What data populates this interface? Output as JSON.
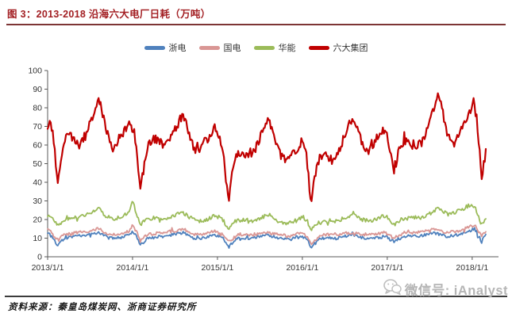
{
  "header": {
    "title": "图 3：2013-2018 沿海六大电厂日耗（万吨）"
  },
  "colors": {
    "title_red": "#a32024",
    "rule_red": "#7d3535",
    "axis": "#595959",
    "tick_label": "#333333",
    "watermark_gray": "#b5b5b5",
    "series_blue": "#4f81bd",
    "series_pink": "#d99694",
    "series_green": "#9bbb59",
    "series_red": "#c00000"
  },
  "footer": {
    "source_label": "资料来源：秦皇岛煤炭网、浙商证券研究所",
    "watermark": "微信号: iAnalyst"
  },
  "chart_data": {
    "type": "line",
    "title": "2013-2018 沿海六大电厂日耗（万吨）",
    "xlabel": "",
    "ylabel": "",
    "ylim": [
      0,
      100
    ],
    "xlim": [
      2013.0,
      2018.31
    ],
    "grid": false,
    "legend_position": "top",
    "y_ticks": [
      0,
      10,
      20,
      30,
      40,
      50,
      60,
      70,
      80,
      90,
      100
    ],
    "x_ticks": [
      {
        "value": 2013,
        "label": "2013/1/1"
      },
      {
        "value": 2014,
        "label": "2014/1/1"
      },
      {
        "value": 2015,
        "label": "2015/1/1"
      },
      {
        "value": 2016,
        "label": "2016/1/1"
      },
      {
        "value": 2017,
        "label": "2017/1/1"
      },
      {
        "value": 2018,
        "label": "2018/1/1"
      }
    ],
    "series": [
      {
        "name": "浙电",
        "color": "#4f81bd",
        "width": 1.8,
        "jitter": 0.8,
        "points": [
          [
            2013.0,
            13
          ],
          [
            2013.06,
            10
          ],
          [
            2013.115,
            6
          ],
          [
            2013.2,
            10
          ],
          [
            2013.35,
            11
          ],
          [
            2013.5,
            12
          ],
          [
            2013.6,
            13
          ],
          [
            2013.72,
            10
          ],
          [
            2013.85,
            10
          ],
          [
            2013.97,
            12
          ],
          [
            2014.0,
            14
          ],
          [
            2014.05,
            11
          ],
          [
            2014.09,
            6
          ],
          [
            2014.18,
            10
          ],
          [
            2014.35,
            11
          ],
          [
            2014.5,
            12
          ],
          [
            2014.6,
            13
          ],
          [
            2014.72,
            10
          ],
          [
            2014.85,
            10
          ],
          [
            2014.97,
            12
          ],
          [
            2015.06,
            10
          ],
          [
            2015.13,
            6
          ],
          [
            2015.25,
            10
          ],
          [
            2015.42,
            10
          ],
          [
            2015.58,
            12
          ],
          [
            2015.72,
            10
          ],
          [
            2015.85,
            9
          ],
          [
            2015.97,
            11
          ],
          [
            2016.07,
            9
          ],
          [
            2016.1,
            5
          ],
          [
            2016.22,
            10
          ],
          [
            2016.4,
            10
          ],
          [
            2016.58,
            12
          ],
          [
            2016.72,
            10
          ],
          [
            2016.85,
            10
          ],
          [
            2016.97,
            11
          ],
          [
            2017.04,
            9
          ],
          [
            2017.08,
            8
          ],
          [
            2017.2,
            11
          ],
          [
            2017.38,
            11
          ],
          [
            2017.55,
            13
          ],
          [
            2017.7,
            11
          ],
          [
            2017.85,
            12
          ],
          [
            2017.97,
            14
          ],
          [
            2018.03,
            15
          ],
          [
            2018.08,
            11
          ],
          [
            2018.11,
            8
          ],
          [
            2018.17,
            13
          ]
        ]
      },
      {
        "name": "国电",
        "color": "#d99694",
        "width": 1.8,
        "jitter": 0.8,
        "points": [
          [
            2013.0,
            15
          ],
          [
            2013.06,
            12
          ],
          [
            2013.115,
            9
          ],
          [
            2013.2,
            12
          ],
          [
            2013.35,
            13
          ],
          [
            2013.5,
            14
          ],
          [
            2013.6,
            15
          ],
          [
            2013.72,
            12
          ],
          [
            2013.85,
            12
          ],
          [
            2013.97,
            14
          ],
          [
            2014.0,
            17
          ],
          [
            2014.05,
            13
          ],
          [
            2014.09,
            9
          ],
          [
            2014.18,
            12
          ],
          [
            2014.35,
            13
          ],
          [
            2014.5,
            14
          ],
          [
            2014.6,
            15
          ],
          [
            2014.72,
            12
          ],
          [
            2014.85,
            12
          ],
          [
            2014.97,
            14
          ],
          [
            2015.06,
            12
          ],
          [
            2015.13,
            8
          ],
          [
            2015.25,
            12
          ],
          [
            2015.42,
            12
          ],
          [
            2015.58,
            13
          ],
          [
            2015.72,
            12
          ],
          [
            2015.85,
            11
          ],
          [
            2015.97,
            13
          ],
          [
            2016.07,
            11
          ],
          [
            2016.1,
            7
          ],
          [
            2016.22,
            12
          ],
          [
            2016.4,
            12
          ],
          [
            2016.58,
            13
          ],
          [
            2016.72,
            12
          ],
          [
            2016.85,
            12
          ],
          [
            2016.97,
            13
          ],
          [
            2017.04,
            11
          ],
          [
            2017.08,
            10
          ],
          [
            2017.2,
            13
          ],
          [
            2017.38,
            13
          ],
          [
            2017.55,
            15
          ],
          [
            2017.7,
            13
          ],
          [
            2017.85,
            14
          ],
          [
            2017.97,
            16
          ],
          [
            2018.03,
            17
          ],
          [
            2018.08,
            13
          ],
          [
            2018.11,
            11
          ],
          [
            2018.17,
            14
          ]
        ]
      },
      {
        "name": "华能",
        "color": "#9bbb59",
        "width": 1.8,
        "jitter": 1.0,
        "points": [
          [
            2013.0,
            22
          ],
          [
            2013.06,
            20
          ],
          [
            2013.115,
            17
          ],
          [
            2013.18,
            19
          ],
          [
            2013.26,
            21
          ],
          [
            2013.35,
            21
          ],
          [
            2013.44,
            22
          ],
          [
            2013.52,
            24
          ],
          [
            2013.6,
            26
          ],
          [
            2013.68,
            22
          ],
          [
            2013.78,
            20
          ],
          [
            2013.88,
            22
          ],
          [
            2013.96,
            24
          ],
          [
            2014.0,
            31
          ],
          [
            2014.04,
            24
          ],
          [
            2014.09,
            17
          ],
          [
            2014.16,
            20
          ],
          [
            2014.26,
            21
          ],
          [
            2014.38,
            20
          ],
          [
            2014.48,
            22
          ],
          [
            2014.58,
            24
          ],
          [
            2014.68,
            21
          ],
          [
            2014.78,
            19
          ],
          [
            2014.88,
            20
          ],
          [
            2014.97,
            22
          ],
          [
            2015.06,
            20
          ],
          [
            2015.13,
            15
          ],
          [
            2015.2,
            19
          ],
          [
            2015.31,
            20
          ],
          [
            2015.42,
            19
          ],
          [
            2015.52,
            21
          ],
          [
            2015.6,
            23
          ],
          [
            2015.7,
            19
          ],
          [
            2015.8,
            18
          ],
          [
            2015.9,
            19
          ],
          [
            2015.99,
            21
          ],
          [
            2016.06,
            19
          ],
          [
            2016.1,
            14
          ],
          [
            2016.18,
            18
          ],
          [
            2016.28,
            19
          ],
          [
            2016.4,
            19
          ],
          [
            2016.5,
            21
          ],
          [
            2016.6,
            23
          ],
          [
            2016.7,
            20
          ],
          [
            2016.8,
            19
          ],
          [
            2016.9,
            21
          ],
          [
            2016.98,
            22
          ],
          [
            2017.04,
            19
          ],
          [
            2017.08,
            17
          ],
          [
            2017.16,
            20
          ],
          [
            2017.28,
            21
          ],
          [
            2017.4,
            21
          ],
          [
            2017.5,
            23
          ],
          [
            2017.6,
            26
          ],
          [
            2017.7,
            23
          ],
          [
            2017.8,
            24
          ],
          [
            2017.9,
            26
          ],
          [
            2017.98,
            28
          ],
          [
            2018.04,
            26
          ],
          [
            2018.08,
            21
          ],
          [
            2018.11,
            17
          ],
          [
            2018.14,
            19
          ],
          [
            2018.17,
            22
          ]
        ]
      },
      {
        "name": "六大集团",
        "color": "#c00000",
        "width": 2.2,
        "jitter": 2.3,
        "points": [
          [
            2013.0,
            70
          ],
          [
            2013.02,
            72
          ],
          [
            2013.06,
            67
          ],
          [
            2013.09,
            55
          ],
          [
            2013.115,
            37
          ],
          [
            2013.15,
            48
          ],
          [
            2013.2,
            63
          ],
          [
            2013.26,
            66
          ],
          [
            2013.32,
            62
          ],
          [
            2013.38,
            60
          ],
          [
            2013.44,
            64
          ],
          [
            2013.5,
            72
          ],
          [
            2013.55,
            78
          ],
          [
            2013.6,
            86
          ],
          [
            2013.64,
            78
          ],
          [
            2013.68,
            70
          ],
          [
            2013.73,
            62
          ],
          [
            2013.78,
            57
          ],
          [
            2013.83,
            63
          ],
          [
            2013.88,
            66
          ],
          [
            2013.93,
            69
          ],
          [
            2013.98,
            72
          ],
          [
            2014.02,
            67
          ],
          [
            2014.05,
            58
          ],
          [
            2014.09,
            35
          ],
          [
            2014.13,
            47
          ],
          [
            2014.18,
            60
          ],
          [
            2014.24,
            64
          ],
          [
            2014.31,
            62
          ],
          [
            2014.38,
            60
          ],
          [
            2014.44,
            63
          ],
          [
            2014.5,
            68
          ],
          [
            2014.56,
            74
          ],
          [
            2014.6,
            76
          ],
          [
            2014.65,
            68
          ],
          [
            2014.7,
            61
          ],
          [
            2014.76,
            56
          ],
          [
            2014.81,
            59
          ],
          [
            2014.86,
            62
          ],
          [
            2014.91,
            65
          ],
          [
            2014.97,
            70
          ],
          [
            2015.01,
            66
          ],
          [
            2015.06,
            57
          ],
          [
            2015.13,
            33
          ],
          [
            2015.18,
            48
          ],
          [
            2015.24,
            57
          ],
          [
            2015.31,
            55
          ],
          [
            2015.38,
            53
          ],
          [
            2015.44,
            57
          ],
          [
            2015.5,
            64
          ],
          [
            2015.56,
            71
          ],
          [
            2015.6,
            75
          ],
          [
            2015.64,
            68
          ],
          [
            2015.69,
            60
          ],
          [
            2015.74,
            55
          ],
          [
            2015.79,
            52
          ],
          [
            2015.84,
            54
          ],
          [
            2015.89,
            55
          ],
          [
            2015.94,
            58
          ],
          [
            2015.99,
            62
          ],
          [
            2016.04,
            57
          ],
          [
            2016.07,
            45
          ],
          [
            2016.1,
            28
          ],
          [
            2016.15,
            44
          ],
          [
            2016.21,
            54
          ],
          [
            2016.28,
            54
          ],
          [
            2016.35,
            52
          ],
          [
            2016.42,
            56
          ],
          [
            2016.49,
            64
          ],
          [
            2016.55,
            72
          ],
          [
            2016.6,
            75
          ],
          [
            2016.65,
            68
          ],
          [
            2016.7,
            61
          ],
          [
            2016.75,
            56
          ],
          [
            2016.8,
            58
          ],
          [
            2016.85,
            62
          ],
          [
            2016.9,
            65
          ],
          [
            2016.95,
            68
          ],
          [
            2017.0,
            65
          ],
          [
            2017.04,
            55
          ],
          [
            2017.08,
            44
          ],
          [
            2017.13,
            56
          ],
          [
            2017.19,
            62
          ],
          [
            2017.26,
            62
          ],
          [
            2017.33,
            58
          ],
          [
            2017.4,
            61
          ],
          [
            2017.46,
            67
          ],
          [
            2017.52,
            76
          ],
          [
            2017.56,
            82
          ],
          [
            2017.6,
            87
          ],
          [
            2017.64,
            80
          ],
          [
            2017.68,
            72
          ],
          [
            2017.73,
            64
          ],
          [
            2017.78,
            60
          ],
          [
            2017.83,
            64
          ],
          [
            2017.88,
            69
          ],
          [
            2017.93,
            74
          ],
          [
            2017.98,
            79
          ],
          [
            2018.02,
            84
          ],
          [
            2018.05,
            76
          ],
          [
            2018.08,
            60
          ],
          [
            2018.11,
            42
          ],
          [
            2018.14,
            52
          ],
          [
            2018.17,
            63
          ]
        ]
      }
    ]
  }
}
